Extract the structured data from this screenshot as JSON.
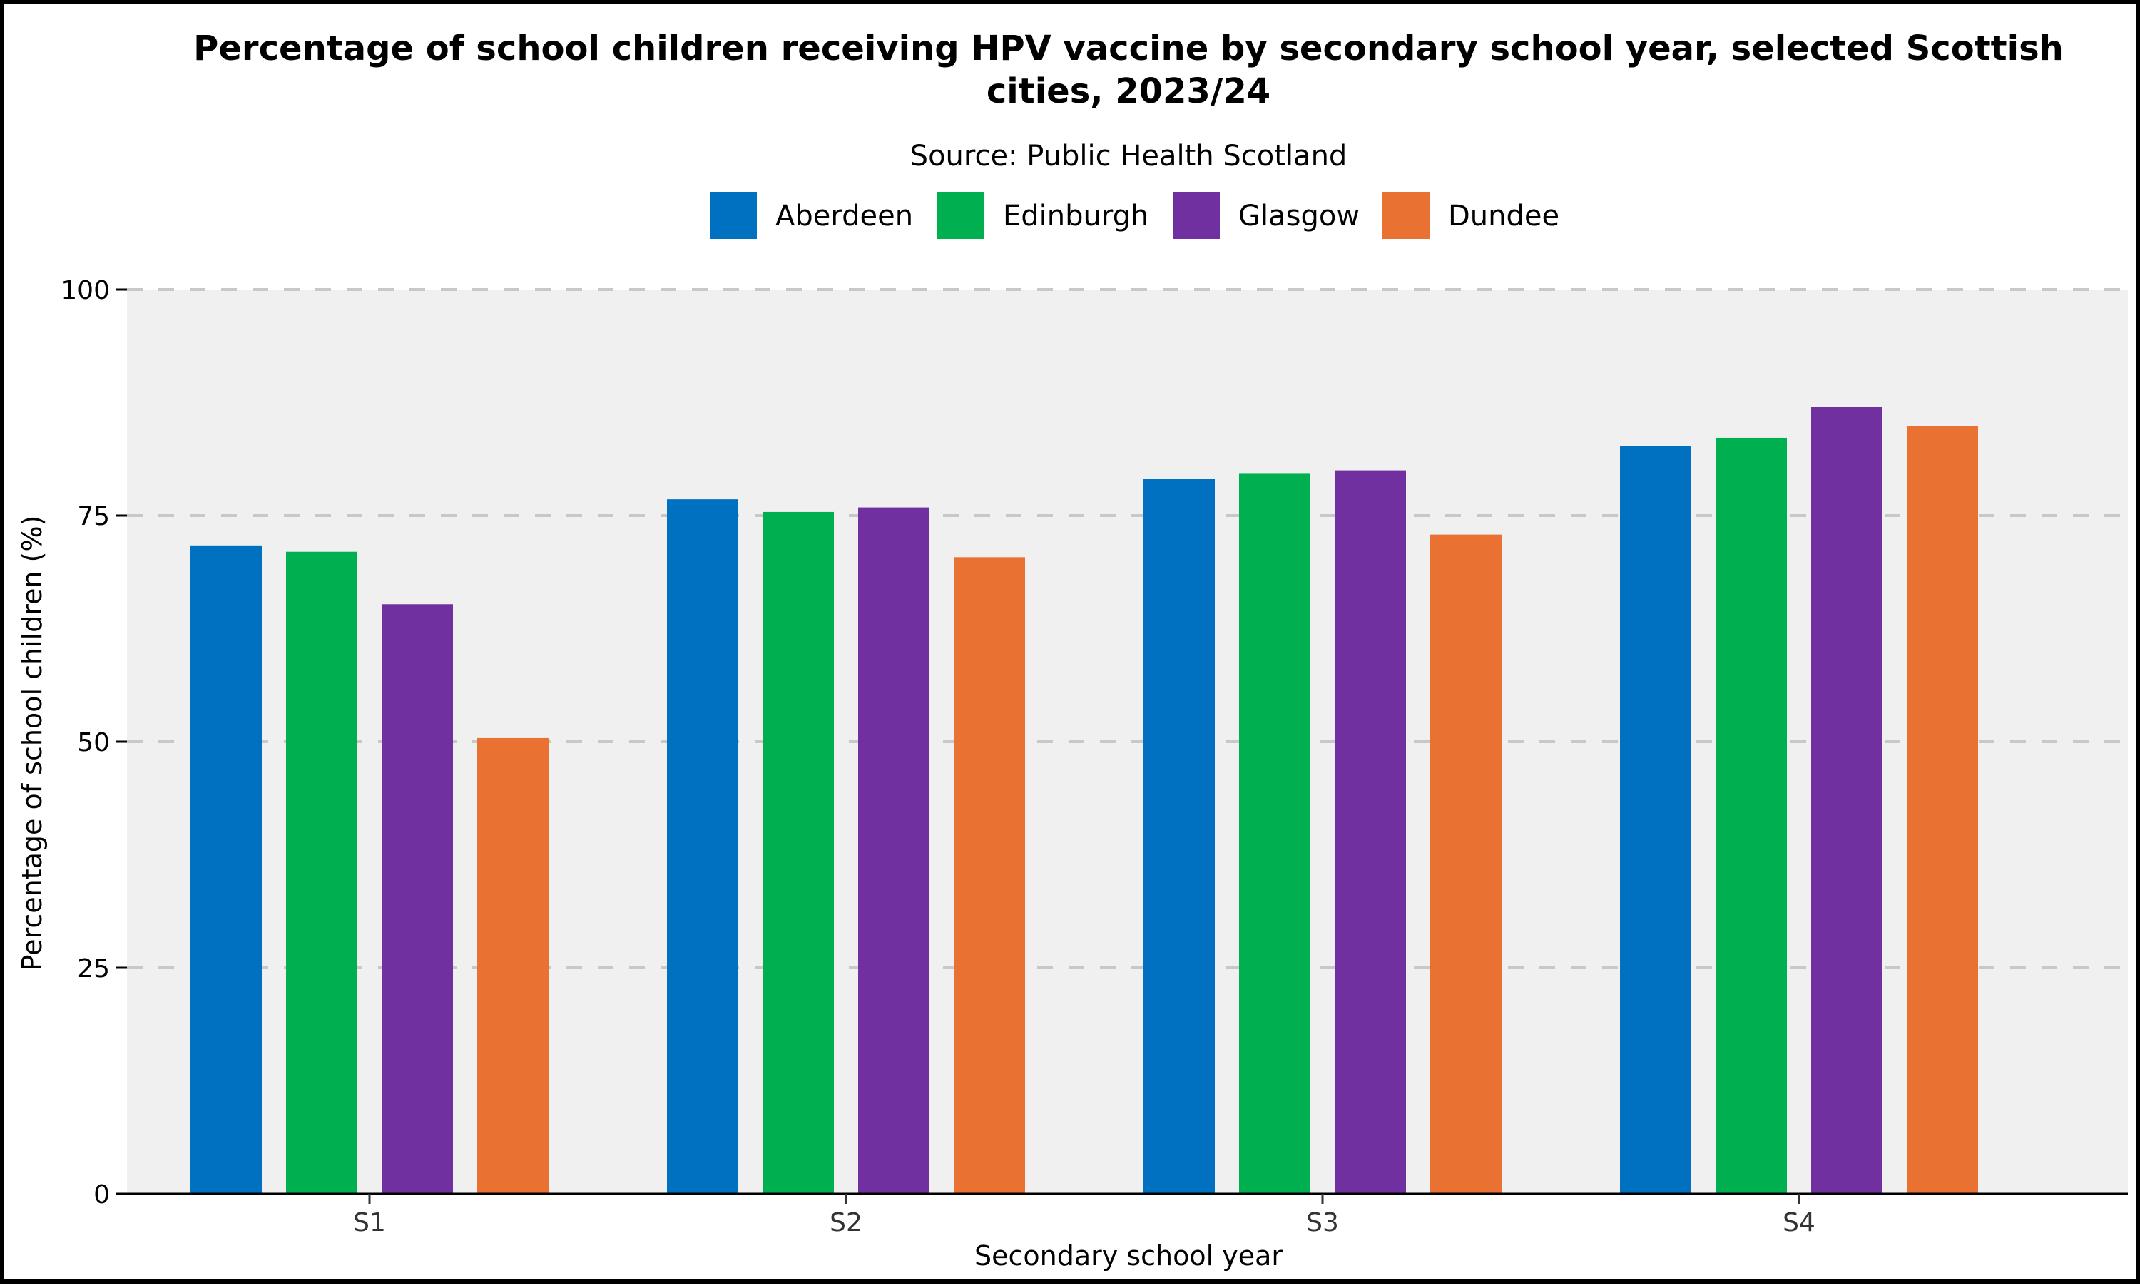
{
  "chart_data": {
    "type": "bar",
    "title_line1": "Percentage of school children receiving HPV vaccine by secondary school year, selected Scottish",
    "title_line2": "cities, 2023/24",
    "subtitle": "Source: Public Health Scotland",
    "xlabel": "Secondary school year",
    "ylabel": "Percentage of school children (%)",
    "categories": [
      "S1",
      "S2",
      "S3",
      "S4"
    ],
    "ylim": [
      0,
      100
    ],
    "yticks": [
      "0",
      "25",
      "50",
      "75",
      "100"
    ],
    "ytick_values": [
      0,
      25,
      50,
      75,
      100
    ],
    "grid": true,
    "legend_position": "top-center",
    "series": [
      {
        "name": "Aberdeen",
        "color": "#0070C0",
        "values": [
          71.7,
          76.8,
          79.1,
          82.7
        ]
      },
      {
        "name": "Edinburgh",
        "color": "#00B050",
        "values": [
          71.0,
          75.4,
          79.7,
          83.6
        ]
      },
      {
        "name": "Glasgow",
        "color": "#7030A0",
        "values": [
          65.2,
          75.9,
          80.0,
          87.0
        ]
      },
      {
        "name": "Dundee",
        "color": "#E97132",
        "values": [
          50.4,
          70.4,
          72.9,
          84.9
        ]
      }
    ],
    "panel_background": "#F0F0F0",
    "grid_color": "#C8C8C8"
  }
}
